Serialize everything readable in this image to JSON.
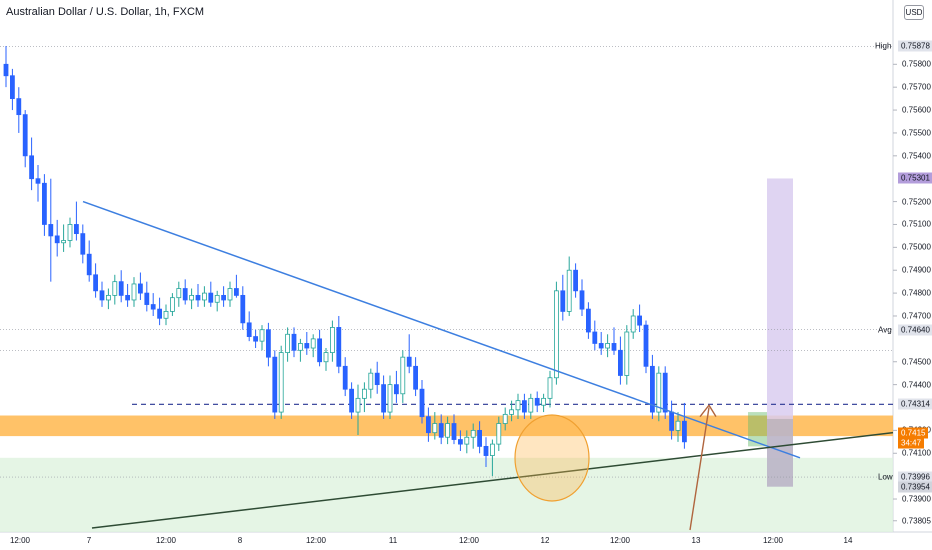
{
  "header": {
    "title": "Australian Dollar / U.S. Dollar, 1h, FXCM",
    "currency_button": "USD"
  },
  "colors": {
    "up": "#26a69a",
    "down": "#2962ff",
    "body_up": "#ffffff",
    "orange_zone": "#ffb74d",
    "green_zone": "#dff3df",
    "purple_zone": "#d9cdf0",
    "trendline_down": "#3d7fe0",
    "trendline_up": "#2e4b34",
    "dashed": "#283593",
    "arrow": "#b0653e"
  },
  "chart_data": {
    "type": "candlestick",
    "symbol": "AUDUSD",
    "timeframe": "1h",
    "ylim": [
      0.7378,
      0.76
    ],
    "y_ticks": [
      "0.75800",
      "0.75700",
      "0.75600",
      "0.75500",
      "0.75400",
      "0.75200",
      "0.75100",
      "0.75000",
      "0.74900",
      "0.74800",
      "0.74700",
      "0.74500",
      "0.74400",
      "0.74200",
      "0.74100",
      "0.73900",
      "0.73805"
    ],
    "x_ticks": [
      "12:00",
      "7",
      "12:00",
      "8",
      "12:00",
      "11",
      "12:00",
      "12",
      "12:00",
      "13",
      "12:00",
      "14"
    ],
    "levels": [
      {
        "name": "High",
        "label": "0.75878"
      },
      {
        "name": "Avg",
        "label": "0.74640"
      },
      {
        "name": "Low",
        "label": "0.73996"
      }
    ],
    "price_tags": [
      "0.75301",
      "0.74314",
      "0.73954",
      "0.7415",
      "34:47"
    ],
    "candles": [
      [
        0.758,
        0.7588,
        0.757,
        0.7575
      ],
      [
        0.7575,
        0.7578,
        0.756,
        0.7565
      ],
      [
        0.7565,
        0.757,
        0.755,
        0.7558
      ],
      [
        0.7558,
        0.756,
        0.7535,
        0.754
      ],
      [
        0.754,
        0.7548,
        0.7525,
        0.753
      ],
      [
        0.753,
        0.7536,
        0.752,
        0.7528
      ],
      [
        0.7528,
        0.7532,
        0.7505,
        0.751
      ],
      [
        0.751,
        0.753,
        0.7485,
        0.7505
      ],
      [
        0.7505,
        0.7512,
        0.7496,
        0.7502
      ],
      [
        0.7502,
        0.751,
        0.7498,
        0.7503
      ],
      [
        0.7503,
        0.7513,
        0.75,
        0.751
      ],
      [
        0.751,
        0.752,
        0.7503,
        0.7506
      ],
      [
        0.7506,
        0.751,
        0.7493,
        0.7497
      ],
      [
        0.7497,
        0.7503,
        0.7485,
        0.7488
      ],
      [
        0.7488,
        0.7493,
        0.7478,
        0.7481
      ],
      [
        0.7481,
        0.7485,
        0.7474,
        0.7477
      ],
      [
        0.7477,
        0.7482,
        0.7473,
        0.7479
      ],
      [
        0.7479,
        0.7488,
        0.7475,
        0.7485
      ],
      [
        0.7485,
        0.749,
        0.7476,
        0.7479
      ],
      [
        0.7479,
        0.7484,
        0.7474,
        0.7477
      ],
      [
        0.7477,
        0.7487,
        0.7474,
        0.7484
      ],
      [
        0.7484,
        0.7489,
        0.7477,
        0.748
      ],
      [
        0.748,
        0.7485,
        0.7472,
        0.7475
      ],
      [
        0.7475,
        0.748,
        0.747,
        0.7473
      ],
      [
        0.7473,
        0.7478,
        0.7466,
        0.7469
      ],
      [
        0.7469,
        0.7475,
        0.7466,
        0.7472
      ],
      [
        0.7472,
        0.748,
        0.747,
        0.7478
      ],
      [
        0.7478,
        0.7485,
        0.7474,
        0.7482
      ],
      [
        0.7482,
        0.7486,
        0.7475,
        0.7477
      ],
      [
        0.7477,
        0.7482,
        0.7473,
        0.7479
      ],
      [
        0.7479,
        0.7484,
        0.7474,
        0.7477
      ],
      [
        0.7477,
        0.7483,
        0.7474,
        0.748
      ],
      [
        0.748,
        0.7485,
        0.7474,
        0.7476
      ],
      [
        0.7476,
        0.7481,
        0.7472,
        0.7479
      ],
      [
        0.7479,
        0.7483,
        0.7474,
        0.7477
      ],
      [
        0.7477,
        0.7485,
        0.7474,
        0.7482
      ],
      [
        0.7482,
        0.7488,
        0.7478,
        0.7479
      ],
      [
        0.7479,
        0.7483,
        0.7464,
        0.7467
      ],
      [
        0.7467,
        0.7472,
        0.7459,
        0.7461
      ],
      [
        0.7461,
        0.7464,
        0.7456,
        0.7459
      ],
      [
        0.7459,
        0.7466,
        0.7455,
        0.7464
      ],
      [
        0.7464,
        0.7467,
        0.7448,
        0.7452
      ],
      [
        0.7452,
        0.7455,
        0.7425,
        0.7428
      ],
      [
        0.7428,
        0.7457,
        0.7425,
        0.7454
      ],
      [
        0.7454,
        0.7465,
        0.745,
        0.7462
      ],
      [
        0.7462,
        0.7465,
        0.7452,
        0.7455
      ],
      [
        0.7455,
        0.746,
        0.745,
        0.7458
      ],
      [
        0.7458,
        0.7463,
        0.7453,
        0.7456
      ],
      [
        0.7456,
        0.7462,
        0.7452,
        0.746
      ],
      [
        0.746,
        0.7464,
        0.7448,
        0.745
      ],
      [
        0.745,
        0.7456,
        0.7446,
        0.7454
      ],
      [
        0.7454,
        0.7468,
        0.745,
        0.7465
      ],
      [
        0.7465,
        0.747,
        0.7445,
        0.7448
      ],
      [
        0.7448,
        0.7452,
        0.7435,
        0.7438
      ],
      [
        0.7438,
        0.7441,
        0.7425,
        0.7428
      ],
      [
        0.7428,
        0.744,
        0.7418,
        0.7434
      ],
      [
        0.7434,
        0.7441,
        0.7428,
        0.7438
      ],
      [
        0.7438,
        0.7447,
        0.7434,
        0.7445
      ],
      [
        0.7445,
        0.745,
        0.7436,
        0.744
      ],
      [
        0.744,
        0.7444,
        0.7425,
        0.7428
      ],
      [
        0.7428,
        0.7444,
        0.7425,
        0.744
      ],
      [
        0.744,
        0.7446,
        0.7432,
        0.7436
      ],
      [
        0.7436,
        0.7455,
        0.7432,
        0.7452
      ],
      [
        0.7452,
        0.7462,
        0.7445,
        0.7448
      ],
      [
        0.7448,
        0.7452,
        0.7435,
        0.7438
      ],
      [
        0.7438,
        0.7442,
        0.7423,
        0.7426
      ],
      [
        0.7426,
        0.743,
        0.7415,
        0.7419
      ],
      [
        0.7419,
        0.7428,
        0.7416,
        0.7423
      ],
      [
        0.7423,
        0.7427,
        0.7414,
        0.7417
      ],
      [
        0.7417,
        0.7426,
        0.7414,
        0.7423
      ],
      [
        0.7423,
        0.7427,
        0.7414,
        0.7416
      ],
      [
        0.7416,
        0.742,
        0.7411,
        0.7414
      ],
      [
        0.7414,
        0.742,
        0.741,
        0.7417
      ],
      [
        0.7417,
        0.7423,
        0.7412,
        0.742
      ],
      [
        0.742,
        0.7424,
        0.741,
        0.7413
      ],
      [
        0.7413,
        0.7417,
        0.7404,
        0.7409
      ],
      [
        0.7409,
        0.7416,
        0.74,
        0.7414
      ],
      [
        0.7414,
        0.7426,
        0.7411,
        0.7423
      ],
      [
        0.7423,
        0.743,
        0.742,
        0.7427
      ],
      [
        0.7427,
        0.7433,
        0.7424,
        0.7429
      ],
      [
        0.7429,
        0.7436,
        0.7425,
        0.7433
      ],
      [
        0.7433,
        0.7436,
        0.7425,
        0.7428
      ],
      [
        0.7428,
        0.7436,
        0.7425,
        0.7434
      ],
      [
        0.7434,
        0.7437,
        0.7428,
        0.7431
      ],
      [
        0.7431,
        0.7436,
        0.7428,
        0.7434
      ],
      [
        0.7434,
        0.7446,
        0.743,
        0.7443
      ],
      [
        0.7443,
        0.7485,
        0.744,
        0.7481
      ],
      [
        0.7481,
        0.7488,
        0.7468,
        0.7472
      ],
      [
        0.7472,
        0.7496,
        0.747,
        0.749
      ],
      [
        0.749,
        0.7493,
        0.7478,
        0.7481
      ],
      [
        0.7481,
        0.7486,
        0.747,
        0.7473
      ],
      [
        0.7473,
        0.7476,
        0.746,
        0.7463
      ],
      [
        0.7463,
        0.7468,
        0.7455,
        0.7458
      ],
      [
        0.7458,
        0.7463,
        0.7453,
        0.7456
      ],
      [
        0.7456,
        0.7462,
        0.7452,
        0.7458
      ],
      [
        0.7458,
        0.7465,
        0.7453,
        0.7455
      ],
      [
        0.7455,
        0.7461,
        0.744,
        0.7444
      ],
      [
        0.7444,
        0.7466,
        0.744,
        0.7463
      ],
      [
        0.7463,
        0.7473,
        0.746,
        0.747
      ],
      [
        0.747,
        0.7475,
        0.7463,
        0.7466
      ],
      [
        0.7466,
        0.7468,
        0.7445,
        0.7448
      ],
      [
        0.7448,
        0.7453,
        0.7425,
        0.7428
      ],
      [
        0.7428,
        0.7448,
        0.7424,
        0.7445
      ],
      [
        0.7445,
        0.7448,
        0.7425,
        0.7428
      ],
      [
        0.7428,
        0.7433,
        0.7416,
        0.742
      ],
      [
        0.742,
        0.7428,
        0.7415,
        0.7424
      ],
      [
        0.7424,
        0.7432,
        0.7412,
        0.7415
      ]
    ]
  }
}
